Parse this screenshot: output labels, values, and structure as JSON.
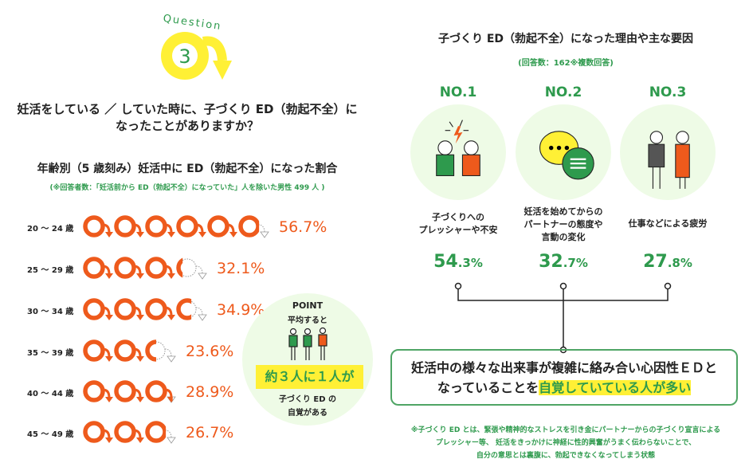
{
  "question": {
    "label": "Question",
    "number": "3",
    "title_line1": "妊活をしている ／ していた時に、子づくり ED（勃起不全）に",
    "title_line2": "なったことがありますか？"
  },
  "colors": {
    "orange": "#ee5a1c",
    "green": "#2e9a4d",
    "yellow": "#fff035",
    "light_green": "#eefbe6"
  },
  "chart_data": {
    "type": "bar",
    "title": "年齢別（5 歳刻み）妊活中に ED（勃起不全）になった割合",
    "note": "(※回答者数：「妊活前から ED（勃起不全）になっていた」人を除いた男性 499 人 )",
    "categories": [
      "20 ～ 24 歳",
      "25 ～ 29 歳",
      "30 ～ 34 歳",
      "35 ～ 39 歳",
      "40 ～ 44 歳",
      "45 ～ 49 歳"
    ],
    "values": [
      56.7,
      32.1,
      34.9,
      23.6,
      28.9,
      26.7
    ],
    "labels": [
      "56.7%",
      "32.1%",
      "34.9%",
      "23.6%",
      "28.9%",
      "26.7%"
    ],
    "unit": "%"
  },
  "point": {
    "label": "POINT",
    "avg": "平均すると",
    "highlight": "約３人に１人が",
    "line1": "子づくり ED の",
    "line2": "自覚がある"
  },
  "reasons": {
    "title": "子づくり ED（勃起不全）になった理由や主な要因",
    "note": "(回答数：162※複数回答)",
    "items": [
      {
        "rank": "NO.1",
        "label": "子づくりへの\nプレッシャーや不安",
        "int": "54",
        "dec": ".3%",
        "icon": "stressed-couple-icon"
      },
      {
        "rank": "NO.2",
        "label": "妊活を始めてからの\nパートナーの態度や\n言動の変化",
        "int": "32",
        "dec": ".7%",
        "icon": "speech-bubbles-icon"
      },
      {
        "rank": "NO.3",
        "label": "仕事などによる疲労",
        "int": "27",
        "dec": ".8%",
        "icon": "tired-workers-icon"
      }
    ],
    "conclusion_1": "妊活中の様々な出来事が複雑に絡み合い心因性ＥＤと",
    "conclusion_2": "なっていることを",
    "conclusion_highlight": "自覚していている人が多い",
    "footnote": "※子づくり ED とは、緊張や精神的なストレスを引き金にパートナーからの子づくり宣言による\nプレッシャー等、 妊活をきっかけに神経に性的興奮がうまく伝わらないことで、\n自分の意思とは裏腹に、勃起できなくなってしまう状態"
  }
}
